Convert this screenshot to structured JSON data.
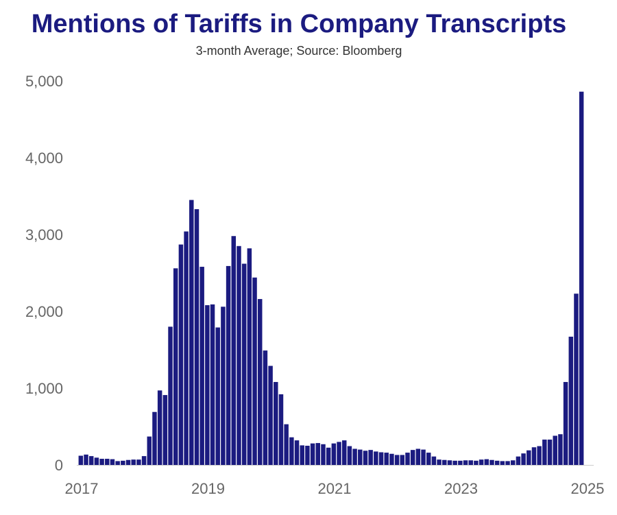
{
  "chart_data": {
    "type": "bar",
    "title": "Mentions of Tariffs in Company Transcripts",
    "subtitle": "3-month Average; Source: Bloomberg",
    "xlabel": "",
    "ylabel": "",
    "ylim": [
      0,
      5000
    ],
    "grid": false,
    "legend": "none",
    "bar_color": "#1b1b80",
    "x_tick_labels": [
      "2017",
      "2019",
      "2021",
      "2023",
      "2025"
    ],
    "y_tick_labels": [
      "0",
      "1,000",
      "2,000",
      "3,000",
      "4,000",
      "5,000"
    ],
    "y_tick_values": [
      0,
      1000,
      2000,
      3000,
      4000,
      5000
    ],
    "x_start": "2017-01",
    "values": [
      120,
      135,
      115,
      95,
      80,
      80,
      75,
      50,
      55,
      65,
      70,
      70,
      115,
      370,
      690,
      970,
      910,
      1800,
      2560,
      2870,
      3040,
      3450,
      3330,
      2580,
      2080,
      2090,
      1790,
      2060,
      2590,
      2980,
      2850,
      2620,
      2820,
      2440,
      2160,
      1490,
      1290,
      1080,
      920,
      530,
      360,
      320,
      255,
      250,
      280,
      285,
      270,
      225,
      280,
      300,
      320,
      245,
      210,
      200,
      185,
      195,
      175,
      165,
      160,
      145,
      130,
      130,
      160,
      195,
      210,
      200,
      160,
      110,
      70,
      65,
      60,
      55,
      55,
      60,
      60,
      55,
      70,
      75,
      65,
      55,
      50,
      50,
      60,
      110,
      150,
      190,
      230,
      245,
      330,
      330,
      380,
      400,
      1080,
      1670,
      2230,
      4860
    ]
  }
}
